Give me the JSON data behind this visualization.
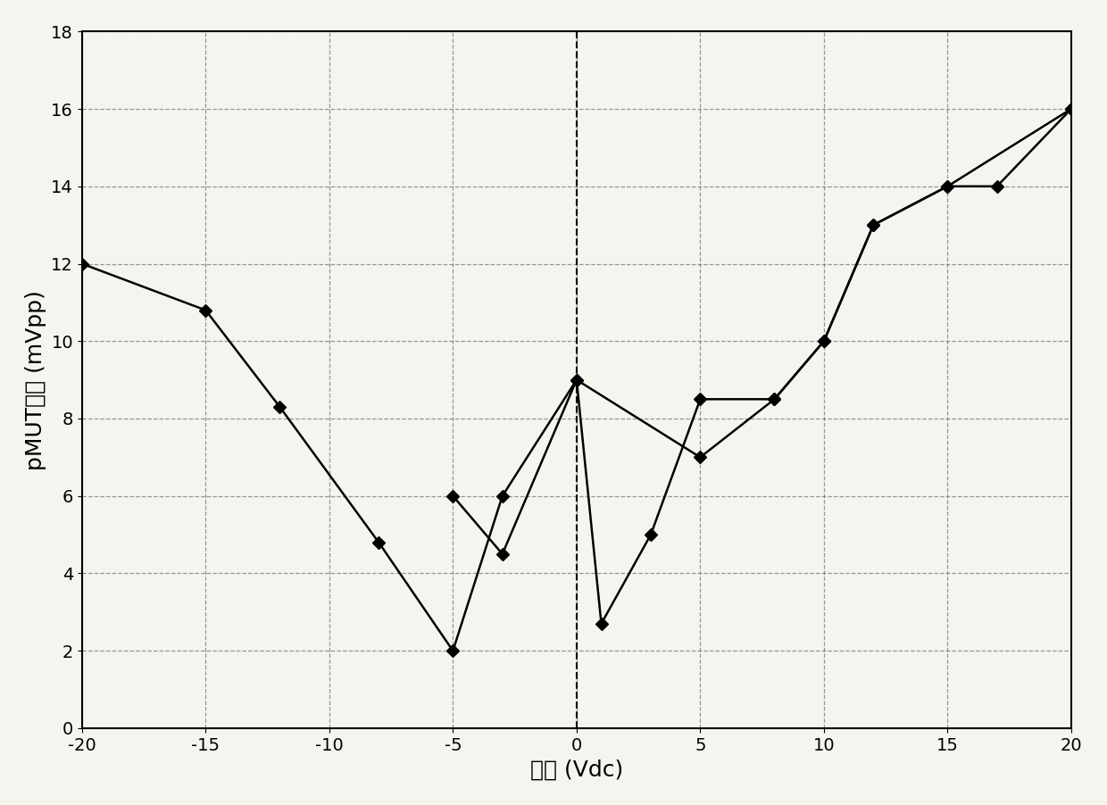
{
  "curve1_x": [
    -20,
    -15,
    -12,
    -8,
    -5,
    -3,
    0,
    5,
    8,
    10,
    12,
    15,
    17,
    20
  ],
  "curve1_y": [
    12,
    10.8,
    8.3,
    4.8,
    2.0,
    6.0,
    9.0,
    7.0,
    8.5,
    10.0,
    13.0,
    14.0,
    14.0,
    16.0
  ],
  "curve2_x": [
    -5,
    -3,
    0,
    1,
    3,
    5,
    8,
    10,
    12,
    15,
    20
  ],
  "curve2_y": [
    6.0,
    4.5,
    9.0,
    2.7,
    5.0,
    8.5,
    8.5,
    10.0,
    13.0,
    14.0,
    16.0
  ],
  "line_color": "#000000",
  "marker": "D",
  "markersize": 7,
  "xlabel": "偶压 (Vdc)",
  "ylabel": "pMUT接收 (mVpp)",
  "xlim": [
    -20,
    20
  ],
  "ylim": [
    0,
    18
  ],
  "xticks": [
    -20,
    -15,
    -10,
    -5,
    0,
    5,
    10,
    15,
    20
  ],
  "yticks": [
    0,
    2,
    4,
    6,
    8,
    10,
    12,
    14,
    16,
    18
  ],
  "grid_color": "#555555",
  "background_color": "#f5f5f0",
  "label_fontsize": 18,
  "tick_fontsize": 14,
  "vline_x": 0,
  "figsize": [
    12.4,
    9.02
  ],
  "dpi": 100
}
